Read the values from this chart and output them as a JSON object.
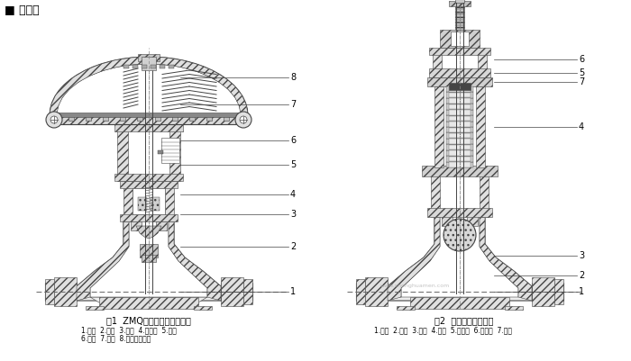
{
  "title": "■ 结构图",
  "fig1_title": "图1  ZMQ气动薄膜单座切断阀",
  "fig1_labels1": "1.阀体  2.阀座  3.阀芯  4.上阀盖  5.填料",
  "fig1_labels2": "6.支架  7.阀杆  8.膜片执行机构",
  "fig2_title": "图2  波纹管密封切断阀",
  "fig2_labels": "1.阀体  2.阀座  3.阀芯  4.阀杆  5.波纹管  6.上阀盖  7.填料",
  "lc": "#444444",
  "hc": "#888888",
  "fc_body": "#f0f0f0",
  "fc_hatch": "#e0e0e0",
  "fc_dark": "#cccccc",
  "fc_white": "#ffffff",
  "watermark": "www.shenghuamen.com"
}
